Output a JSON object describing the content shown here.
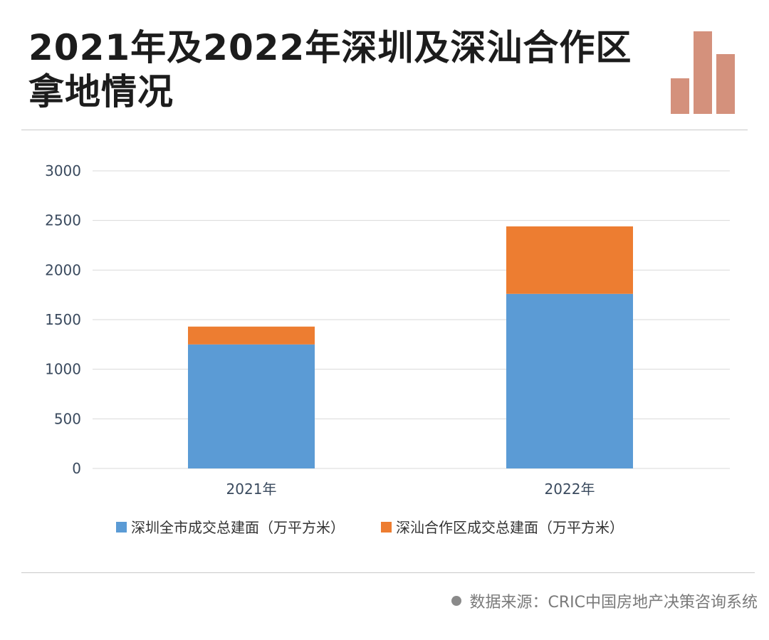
{
  "title": "2021年及2022年深圳及深汕合作区拿地情况",
  "source": "数据来源：CRIC中国房地产决策咨询系统",
  "colors": {
    "series1": "#5b9bd5",
    "series2": "#ed7d31",
    "logo": "#d4917c",
    "grid": "#d9d9d9"
  },
  "chart_data": {
    "type": "bar",
    "stacked": true,
    "categories": [
      "2021年",
      "2022年"
    ],
    "series": [
      {
        "name": "深圳全市成交总建面（万平方米）",
        "values": [
          1250,
          1760
        ]
      },
      {
        "name": "深汕合作区成交总建面（万平方米）",
        "values": [
          180,
          680
        ]
      }
    ],
    "ylim": [
      0,
      3000
    ],
    "yticks": [
      "0",
      "500",
      "1000",
      "1500",
      "2000",
      "2500",
      "3000"
    ],
    "grid": true,
    "legend": "bottom"
  }
}
